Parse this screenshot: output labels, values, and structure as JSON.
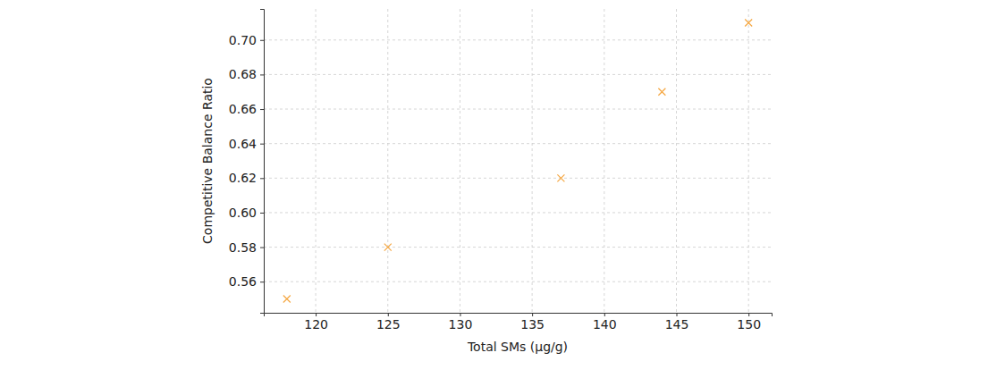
{
  "chart_data": {
    "type": "scatter",
    "xlabel": "Total SMs (μg/g)",
    "ylabel": "Competitive Balance Ratio",
    "x": [
      118,
      125,
      137,
      144,
      150
    ],
    "values": [
      0.55,
      0.58,
      0.62,
      0.67,
      0.71
    ],
    "color": "#f5a742",
    "marker": "x",
    "xlim": [
      116.4,
      151.6
    ],
    "xticks": [
      120,
      125,
      130,
      135,
      140,
      145,
      150
    ],
    "ylim": [
      0.542,
      0.718
    ],
    "yticks": [
      0.56,
      0.58,
      {
        "value": 0.6,
        "label": "0.60"
      },
      0.62,
      0.64,
      0.66,
      0.68,
      {
        "value": 0.7,
        "label": "0.70"
      }
    ],
    "grid": true
  }
}
